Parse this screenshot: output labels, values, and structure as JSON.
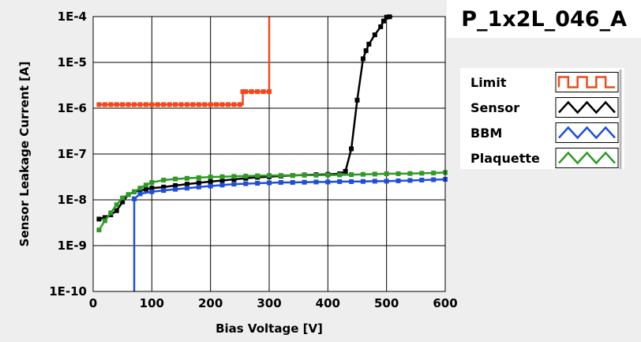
{
  "chart_data": {
    "type": "line",
    "title": "P_1x2L_046_A",
    "xlabel": "Bias Voltage [V]",
    "ylabel": "Sensor Leakage Current [A]",
    "xlim": [
      0,
      600
    ],
    "ylim": [
      1e-10,
      0.0001
    ],
    "yscale": "log",
    "grid": true,
    "legend_position": "right",
    "x_ticks": [
      0,
      100,
      200,
      300,
      400,
      500,
      600
    ],
    "y_ticks": [
      {
        "value": 1e-10,
        "label": "1E-10"
      },
      {
        "value": 1e-09,
        "label": "1E-9"
      },
      {
        "value": 1e-08,
        "label": "1E-8"
      },
      {
        "value": 1e-07,
        "label": "1E-7"
      },
      {
        "value": 1e-06,
        "label": "1E-6"
      },
      {
        "value": 1e-05,
        "label": "1E-5"
      },
      {
        "value": 0.0001,
        "label": "1E-4"
      }
    ],
    "series": [
      {
        "name": "Limit",
        "color": "#f04a1c",
        "step": true,
        "points": [
          [
            10,
            1.2e-06
          ],
          [
            20,
            1.2e-06
          ],
          [
            30,
            1.2e-06
          ],
          [
            40,
            1.2e-06
          ],
          [
            50,
            1.2e-06
          ],
          [
            60,
            1.2e-06
          ],
          [
            70,
            1.2e-06
          ],
          [
            80,
            1.2e-06
          ],
          [
            90,
            1.2e-06
          ],
          [
            100,
            1.2e-06
          ],
          [
            110,
            1.2e-06
          ],
          [
            120,
            1.2e-06
          ],
          [
            130,
            1.2e-06
          ],
          [
            140,
            1.2e-06
          ],
          [
            150,
            1.2e-06
          ],
          [
            160,
            1.2e-06
          ],
          [
            170,
            1.2e-06
          ],
          [
            180,
            1.2e-06
          ],
          [
            190,
            1.2e-06
          ],
          [
            200,
            1.2e-06
          ],
          [
            210,
            1.2e-06
          ],
          [
            220,
            1.2e-06
          ],
          [
            230,
            1.2e-06
          ],
          [
            240,
            1.2e-06
          ],
          [
            250,
            1.2e-06
          ],
          [
            255,
            2.3e-06
          ],
          [
            260,
            2.3e-06
          ],
          [
            270,
            2.3e-06
          ],
          [
            280,
            2.3e-06
          ],
          [
            290,
            2.3e-06
          ],
          [
            300,
            2.3e-06
          ],
          [
            300,
            0.0001
          ]
        ]
      },
      {
        "name": "Sensor",
        "color": "#000000",
        "step": false,
        "points": [
          [
            10,
            3.8e-09
          ],
          [
            20,
            4.1e-09
          ],
          [
            30,
            4.7e-09
          ],
          [
            40,
            5.8e-09
          ],
          [
            50,
            9e-09
          ],
          [
            60,
            1.3e-08
          ],
          [
            70,
            1.5e-08
          ],
          [
            80,
            1.6e-08
          ],
          [
            90,
            1.7e-08
          ],
          [
            100,
            1.8e-08
          ],
          [
            120,
            1.9e-08
          ],
          [
            140,
            2.05e-08
          ],
          [
            160,
            2.2e-08
          ],
          [
            180,
            2.35e-08
          ],
          [
            200,
            2.5e-08
          ],
          [
            220,
            2.65e-08
          ],
          [
            240,
            2.8e-08
          ],
          [
            260,
            2.95e-08
          ],
          [
            280,
            3.1e-08
          ],
          [
            300,
            3.2e-08
          ],
          [
            320,
            3.3e-08
          ],
          [
            340,
            3.4e-08
          ],
          [
            360,
            3.5e-08
          ],
          [
            380,
            3.55e-08
          ],
          [
            400,
            3.6e-08
          ],
          [
            420,
            3.7e-08
          ],
          [
            430,
            4.2e-08
          ],
          [
            440,
            1.3e-07
          ],
          [
            450,
            1.5e-06
          ],
          [
            460,
            1.2e-05
          ],
          [
            465,
            1.8e-05
          ],
          [
            470,
            2.5e-05
          ],
          [
            480,
            4e-05
          ],
          [
            490,
            6e-05
          ],
          [
            495,
            8e-05
          ],
          [
            500,
            9.7e-05
          ],
          [
            505,
            9.9e-05
          ],
          [
            510,
            0.0001
          ]
        ]
      },
      {
        "name": "BBM",
        "color": "#1f4fd9",
        "step": false,
        "points": [
          [
            70,
            1e-10
          ],
          [
            70,
            1.05e-08
          ],
          [
            80,
            1.35e-08
          ],
          [
            100,
            1.5e-08
          ],
          [
            120,
            1.6e-08
          ],
          [
            140,
            1.7e-08
          ],
          [
            160,
            1.8e-08
          ],
          [
            180,
            1.9e-08
          ],
          [
            200,
            2e-08
          ],
          [
            220,
            2.1e-08
          ],
          [
            240,
            2.2e-08
          ],
          [
            260,
            2.25e-08
          ],
          [
            280,
            2.3e-08
          ],
          [
            300,
            2.35e-08
          ],
          [
            320,
            2.4e-08
          ],
          [
            340,
            2.4e-08
          ],
          [
            360,
            2.42e-08
          ],
          [
            380,
            2.45e-08
          ],
          [
            400,
            2.45e-08
          ],
          [
            420,
            2.5e-08
          ],
          [
            440,
            2.5e-08
          ],
          [
            460,
            2.52e-08
          ],
          [
            480,
            2.55e-08
          ],
          [
            500,
            2.55e-08
          ],
          [
            520,
            2.6e-08
          ],
          [
            540,
            2.65e-08
          ],
          [
            560,
            2.7e-08
          ],
          [
            580,
            2.75e-08
          ],
          [
            600,
            2.8e-08
          ]
        ]
      },
      {
        "name": "Plaquette",
        "color": "#2f9a26",
        "step": false,
        "points": [
          [
            10,
            2.2e-09
          ],
          [
            20,
            3.5e-09
          ],
          [
            30,
            5.2e-09
          ],
          [
            40,
            7.8e-09
          ],
          [
            50,
            1.1e-08
          ],
          [
            60,
            1.3e-08
          ],
          [
            70,
            1.5e-08
          ],
          [
            80,
            1.8e-08
          ],
          [
            90,
            2.1e-08
          ],
          [
            100,
            2.4e-08
          ],
          [
            120,
            2.7e-08
          ],
          [
            140,
            2.85e-08
          ],
          [
            160,
            2.95e-08
          ],
          [
            180,
            3.05e-08
          ],
          [
            200,
            3.15e-08
          ],
          [
            220,
            3.2e-08
          ],
          [
            240,
            3.25e-08
          ],
          [
            260,
            3.3e-08
          ],
          [
            280,
            3.35e-08
          ],
          [
            300,
            3.4e-08
          ],
          [
            320,
            3.4e-08
          ],
          [
            340,
            3.42e-08
          ],
          [
            360,
            3.45e-08
          ],
          [
            380,
            3.45e-08
          ],
          [
            400,
            3.48e-08
          ],
          [
            420,
            3.5e-08
          ],
          [
            440,
            3.55e-08
          ],
          [
            460,
            3.6e-08
          ],
          [
            480,
            3.65e-08
          ],
          [
            500,
            3.7e-08
          ],
          [
            520,
            3.72e-08
          ],
          [
            540,
            3.75e-08
          ],
          [
            560,
            3.8e-08
          ],
          [
            580,
            3.85e-08
          ],
          [
            600,
            3.95e-08
          ]
        ]
      }
    ]
  }
}
